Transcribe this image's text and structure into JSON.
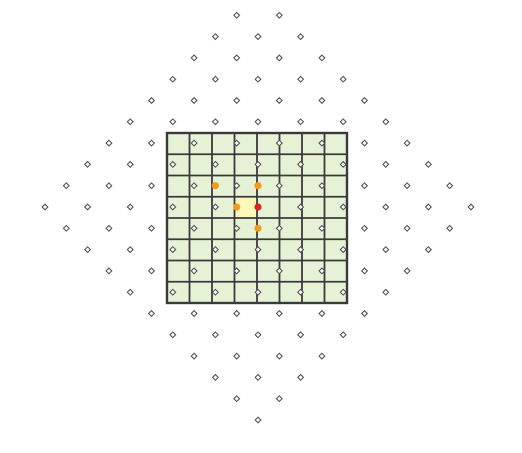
{
  "diagram": {
    "colors": {
      "background": "#ffffff",
      "grid_fill": "#e6f2d6",
      "grid_stroke": "#3a3a3a",
      "lattice_dot_fill": "#ffffff",
      "lattice_dot_stroke": "#555555",
      "highlight_cell_fill": "#fdf7b8",
      "neighbor_point_fill": "#f39a1c",
      "center_point_fill": "#d9261c"
    },
    "grid": {
      "rows": 8,
      "cols": 8,
      "highlight_cell": {
        "row": 3,
        "col": 3
      }
    },
    "lattice": {
      "shape": "diamond",
      "radius": 10,
      "center": {
        "i": 0,
        "j": 0
      }
    },
    "neighbor_points": [
      {
        "i": -2,
        "j": -1
      },
      {
        "i": 0,
        "j": -1
      },
      {
        "i": -1,
        "j": 0
      },
      {
        "i": 0,
        "j": 1
      }
    ],
    "center_point": {
      "i": 0,
      "j": 0
    }
  }
}
